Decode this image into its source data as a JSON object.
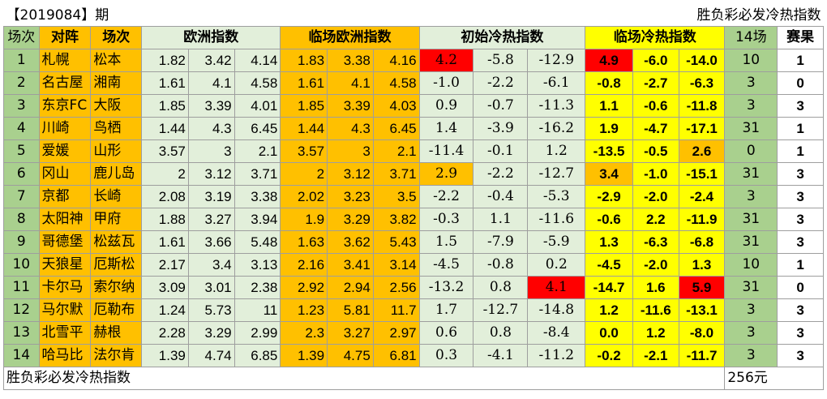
{
  "period_title": "【2019084】期",
  "sheet_title": "胜负彩必发冷热指数",
  "headers": {
    "no": "场次",
    "matchup": "对阵",
    "venue": "场次",
    "euro": "欧洲指数",
    "euro_close": "临场欧洲指数",
    "init_hot": "初始冷热指数",
    "close_hot": "临场冷热指数",
    "col14": "14场",
    "result": "赛果"
  },
  "rows": [
    {
      "no": "1",
      "home": "札幌",
      "away": "松本",
      "e": [
        "1.82",
        "3.42",
        "4.14"
      ],
      "ec": [
        "1.83",
        "3.38",
        "4.16"
      ],
      "ih": [
        "4.2",
        "-5.8",
        "-12.9"
      ],
      "ch": [
        "4.9",
        "-6.0",
        "-14.0"
      ],
      "c14": "10",
      "res": "1"
    },
    {
      "no": "2",
      "home": "名古屋",
      "away": "湘南",
      "e": [
        "1.61",
        "4.1",
        "4.58"
      ],
      "ec": [
        "1.61",
        "4.1",
        "4.58"
      ],
      "ih": [
        "-1.0",
        "-2.2",
        "-6.1"
      ],
      "ch": [
        "-0.8",
        "-2.7",
        "-6.3"
      ],
      "c14": "3",
      "res": "0"
    },
    {
      "no": "3",
      "home": "东京FC",
      "away": "大阪",
      "e": [
        "1.85",
        "3.39",
        "4.01"
      ],
      "ec": [
        "1.85",
        "3.39",
        "4.03"
      ],
      "ih": [
        "0.9",
        "-0.7",
        "-11.3"
      ],
      "ch": [
        "1.1",
        "-0.6",
        "-11.8"
      ],
      "c14": "3",
      "res": "3"
    },
    {
      "no": "4",
      "home": "川崎",
      "away": "鸟栖",
      "e": [
        "1.44",
        "4.3",
        "6.45"
      ],
      "ec": [
        "1.44",
        "4.3",
        "6.45"
      ],
      "ih": [
        "1.4",
        "-3.9",
        "-16.2"
      ],
      "ch": [
        "1.9",
        "-4.7",
        "-17.1"
      ],
      "c14": "31",
      "res": "1"
    },
    {
      "no": "5",
      "home": "爱媛",
      "away": "山形",
      "e": [
        "3.57",
        "3",
        "2.1"
      ],
      "ec": [
        "3.57",
        "3",
        "2.1"
      ],
      "ih": [
        "-11.4",
        "-0.1",
        "1.2"
      ],
      "ch": [
        "-13.5",
        "-0.5",
        "2.6"
      ],
      "c14": "0",
      "res": "1"
    },
    {
      "no": "6",
      "home": "冈山",
      "away": "鹿儿岛",
      "e": [
        "2",
        "3.12",
        "3.71"
      ],
      "ec": [
        "2",
        "3.12",
        "3.71"
      ],
      "ih": [
        "2.9",
        "-2.2",
        "-12.7"
      ],
      "ch": [
        "3.4",
        "-1.0",
        "-15.1"
      ],
      "c14": "31",
      "res": "3"
    },
    {
      "no": "7",
      "home": "京都",
      "away": "长崎",
      "e": [
        "2.08",
        "3.19",
        "3.38"
      ],
      "ec": [
        "2.02",
        "3.23",
        "3.5"
      ],
      "ih": [
        "-2.2",
        "-0.4",
        "-5.3"
      ],
      "ch": [
        "-2.9",
        "-2.0",
        "-2.4"
      ],
      "c14": "3",
      "res": "3"
    },
    {
      "no": "8",
      "home": "太阳神",
      "away": "甲府",
      "e": [
        "1.88",
        "3.27",
        "3.94"
      ],
      "ec": [
        "1.9",
        "3.29",
        "3.82"
      ],
      "ih": [
        "-0.3",
        "1.1",
        "-11.6"
      ],
      "ch": [
        "-0.6",
        "2.2",
        "-11.9"
      ],
      "c14": "31",
      "res": "3"
    },
    {
      "no": "9",
      "home": "哥德堡",
      "away": "松兹瓦",
      "e": [
        "1.61",
        "3.66",
        "5.48"
      ],
      "ec": [
        "1.63",
        "3.62",
        "5.43"
      ],
      "ih": [
        "1.5",
        "-7.9",
        "-5.9"
      ],
      "ch": [
        "1.3",
        "-6.3",
        "-6.8"
      ],
      "c14": "31",
      "res": "3"
    },
    {
      "no": "10",
      "home": "天狼星",
      "away": "厄斯松",
      "e": [
        "2.17",
        "3.4",
        "3.13"
      ],
      "ec": [
        "2.16",
        "3.41",
        "3.14"
      ],
      "ih": [
        "-4.5",
        "-0.8",
        "0.2"
      ],
      "ch": [
        "-4.5",
        "-2.0",
        "1.3"
      ],
      "c14": "10",
      "res": "1"
    },
    {
      "no": "11",
      "home": "卡尔马",
      "away": "索尔纳",
      "e": [
        "3.09",
        "3.01",
        "2.38"
      ],
      "ec": [
        "2.92",
        "2.94",
        "2.56"
      ],
      "ih": [
        "-13.2",
        "0.8",
        "4.1"
      ],
      "ch": [
        "-14.7",
        "1.6",
        "5.9"
      ],
      "c14": "31",
      "res": "0"
    },
    {
      "no": "12",
      "home": "马尔默",
      "away": "厄勒布",
      "e": [
        "1.24",
        "5.73",
        "11"
      ],
      "ec": [
        "1.23",
        "5.81",
        "11.7"
      ],
      "ih": [
        "1.7",
        "-12.7",
        "-14.8"
      ],
      "ch": [
        "1.2",
        "-11.6",
        "-13.1"
      ],
      "c14": "3",
      "res": "3"
    },
    {
      "no": "13",
      "home": "北雪平",
      "away": "赫根",
      "e": [
        "2.28",
        "3.29",
        "2.99"
      ],
      "ec": [
        "2.3",
        "3.27",
        "2.97"
      ],
      "ih": [
        "0.6",
        "0.8",
        "-8.4"
      ],
      "ch": [
        "0.0",
        "1.2",
        "-8.0"
      ],
      "c14": "3",
      "res": "3"
    },
    {
      "no": "14",
      "home": "哈马比",
      "away": "法尔肯",
      "e": [
        "1.39",
        "4.74",
        "6.85"
      ],
      "ec": [
        "1.39",
        "4.75",
        "6.81"
      ],
      "ih": [
        "0.3",
        "-4.1",
        "-11.2"
      ],
      "ch": [
        "-0.2",
        "-2.1",
        "-11.7"
      ],
      "c14": "3",
      "res": "3"
    }
  ],
  "footer": {
    "label": "胜负彩必发冷热指数",
    "price": "256元"
  },
  "highlights": {
    "init_hot_red": [
      [
        1,
        0
      ],
      [
        11,
        2
      ]
    ],
    "init_hot_orange": [
      [
        6,
        0
      ]
    ],
    "close_hot_red": [
      [
        1,
        0
      ],
      [
        11,
        2
      ]
    ],
    "close_hot_orange": [
      [
        5,
        2
      ],
      [
        6,
        0
      ]
    ]
  },
  "colors": {
    "green": "#a9d08e",
    "light_green": "#e2efda",
    "orange": "#ffc000",
    "yellow": "#ffff00",
    "red": "#ff0000"
  }
}
